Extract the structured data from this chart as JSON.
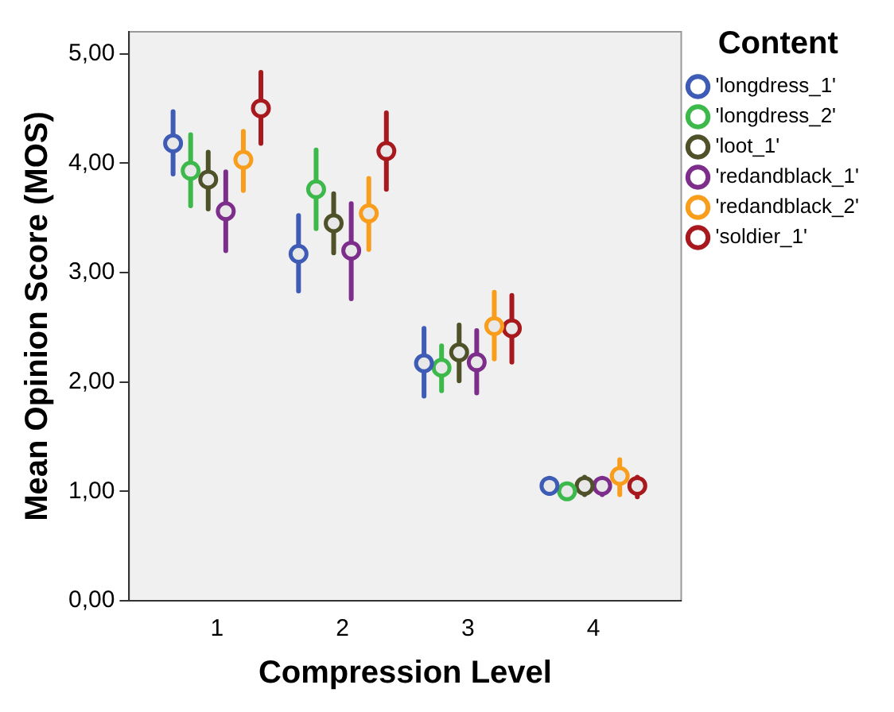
{
  "chart_data": {
    "type": "scatter",
    "xlabel": "Compression Level",
    "ylabel": "Mean Opinion Score (MOS)",
    "legend_title": "Content",
    "legend": "right",
    "marker": "circle",
    "grid": false,
    "categories": [
      "1",
      "2",
      "3",
      "4"
    ],
    "ylim": [
      0,
      5.2
    ],
    "yticks": [
      {
        "value": 0,
        "label": "0,00"
      },
      {
        "value": 1,
        "label": "1,00"
      },
      {
        "value": 2,
        "label": "2,00"
      },
      {
        "value": 3,
        "label": "3,00"
      },
      {
        "value": 4,
        "label": "4,00"
      },
      {
        "value": 5,
        "label": "5,00"
      }
    ],
    "series": [
      {
        "name": "'longdress_1'",
        "color": "#3e5bb5",
        "values": [
          4.18,
          3.17,
          2.17,
          1.05
        ],
        "errors": [
          [
            3.9,
            4.47
          ],
          [
            2.83,
            3.52
          ],
          [
            1.87,
            2.49
          ],
          [
            0.98,
            1.12
          ]
        ]
      },
      {
        "name": "'longdress_2'",
        "color": "#3cb94a",
        "values": [
          3.93,
          3.76,
          2.13,
          1.0
        ],
        "errors": [
          [
            3.61,
            4.26
          ],
          [
            3.4,
            4.12
          ],
          [
            1.92,
            2.33
          ],
          [
            0.97,
            1.03
          ]
        ]
      },
      {
        "name": "'loot_1'",
        "color": "#4f5228",
        "values": [
          3.85,
          3.45,
          2.27,
          1.05
        ],
        "errors": [
          [
            3.58,
            4.1
          ],
          [
            3.18,
            3.72
          ],
          [
            2.01,
            2.52
          ],
          [
            0.97,
            1.13
          ]
        ]
      },
      {
        "name": "'redandblack_1'",
        "color": "#7d2e8b",
        "values": [
          3.56,
          3.2,
          2.18,
          1.05
        ],
        "errors": [
          [
            3.2,
            3.92
          ],
          [
            2.76,
            3.63
          ],
          [
            1.9,
            2.47
          ],
          [
            0.97,
            1.12
          ]
        ]
      },
      {
        "name": "'redandblack_2'",
        "color": "#f99d1c",
        "values": [
          4.03,
          3.54,
          2.51,
          1.14
        ],
        "errors": [
          [
            3.75,
            4.29
          ],
          [
            3.21,
            3.86
          ],
          [
            2.21,
            2.82
          ],
          [
            0.97,
            1.29
          ]
        ]
      },
      {
        "name": "'soldier_1'",
        "color": "#a8191e",
        "values": [
          4.5,
          4.11,
          2.49,
          1.05
        ],
        "errors": [
          [
            4.18,
            4.83
          ],
          [
            3.76,
            4.46
          ],
          [
            2.18,
            2.79
          ],
          [
            0.95,
            1.13
          ]
        ]
      }
    ]
  }
}
